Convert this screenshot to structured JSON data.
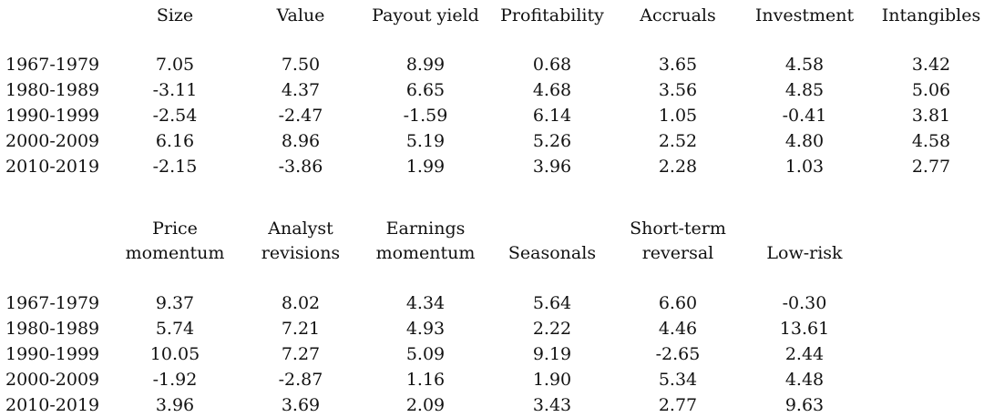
{
  "table1": {
    "headers": [
      "Size",
      "Value",
      "Payout yield",
      "Profitability",
      "Accruals",
      "Investment",
      "Intangibles"
    ],
    "rows": [
      {
        "label": "1967-1979",
        "values": [
          "7.05",
          "7.50",
          "8.99",
          "0.68",
          "3.65",
          "4.58",
          "3.42"
        ]
      },
      {
        "label": "1980-1989",
        "values": [
          "-3.11",
          "4.37",
          "6.65",
          "4.68",
          "3.56",
          "4.85",
          "5.06"
        ]
      },
      {
        "label": "1990-1999",
        "values": [
          "-2.54",
          "-2.47",
          "-1.59",
          "6.14",
          "1.05",
          "-0.41",
          "3.81"
        ]
      },
      {
        "label": "2000-2009",
        "values": [
          "6.16",
          "8.96",
          "5.19",
          "5.26",
          "2.52",
          "4.80",
          "4.58"
        ]
      },
      {
        "label": "2010-2019",
        "values": [
          "-2.15",
          "-3.86",
          "1.99",
          "3.96",
          "2.28",
          "1.03",
          "2.77"
        ]
      }
    ]
  },
  "table2": {
    "headers": [
      {
        "line1": "Price",
        "line2": "momentum"
      },
      {
        "line1": "Analyst",
        "line2": "revisions"
      },
      {
        "line1": "Earnings",
        "line2": "momentum"
      },
      {
        "line1": "",
        "line2": "Seasonals"
      },
      {
        "line1": "Short-term",
        "line2": "reversal"
      },
      {
        "line1": "",
        "line2": "Low-risk"
      }
    ],
    "rows": [
      {
        "label": "1967-1979",
        "values": [
          "9.37",
          "8.02",
          "4.34",
          "5.64",
          "6.60",
          "-0.30"
        ]
      },
      {
        "label": "1980-1989",
        "values": [
          "5.74",
          "7.21",
          "4.93",
          "2.22",
          "4.46",
          "13.61"
        ]
      },
      {
        "label": "1990-1999",
        "values": [
          "10.05",
          "7.27",
          "5.09",
          "9.19",
          "-2.65",
          "2.44"
        ]
      },
      {
        "label": "2000-2009",
        "values": [
          "-1.92",
          "-2.87",
          "1.16",
          "1.90",
          "5.34",
          "4.48"
        ]
      },
      {
        "label": "2010-2019",
        "values": [
          "3.96",
          "3.69",
          "2.09",
          "3.43",
          "2.77",
          "9.63"
        ]
      }
    ]
  }
}
